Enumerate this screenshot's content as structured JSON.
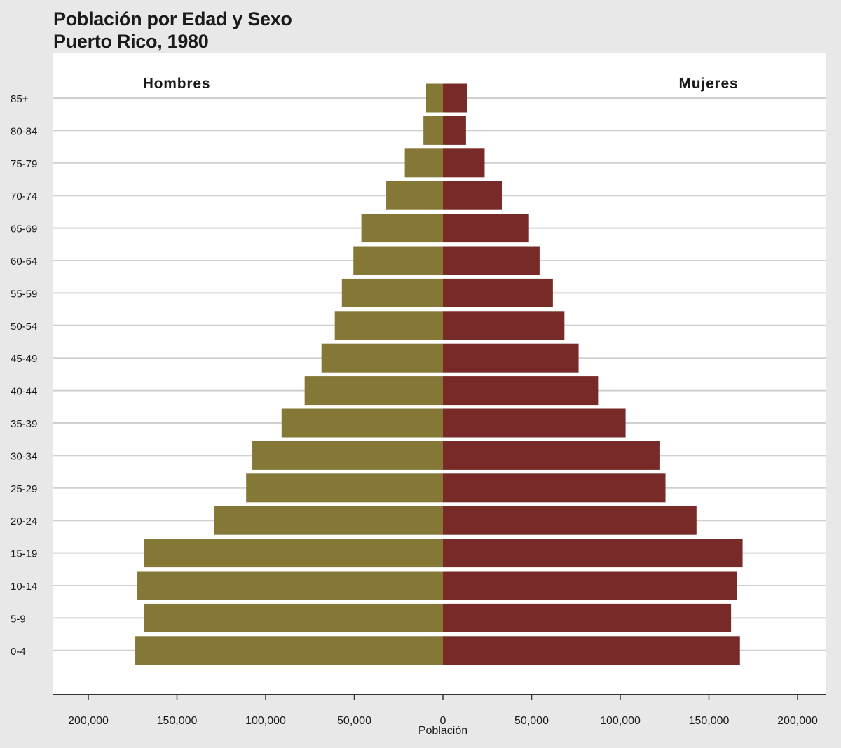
{
  "chart_data": {
    "type": "bar",
    "orientation": "horizontal",
    "layout": "population-pyramid",
    "title": "Población por Edad y Sexo",
    "subtitle": "Puerto Rico, 1980",
    "xlabel": "Población",
    "categories": [
      "85+",
      "80-84",
      "75-79",
      "70-74",
      "65-69",
      "60-64",
      "55-59",
      "50-54",
      "45-49",
      "40-44",
      "35-39",
      "30-34",
      "25-29",
      "20-24",
      "15-19",
      "10-14",
      "5-9",
      "0-4"
    ],
    "series": [
      {
        "name": "Hombres",
        "side": "left",
        "color": "#857736",
        "values": [
          9500,
          11000,
          21500,
          32000,
          46000,
          50500,
          57000,
          61000,
          68500,
          78000,
          91000,
          107500,
          111000,
          129000,
          168500,
          172500,
          168500,
          173500
        ]
      },
      {
        "name": "Mujeres",
        "side": "right",
        "color": "#772a27",
        "values": [
          13500,
          13000,
          23500,
          33500,
          48500,
          54500,
          62000,
          68500,
          76500,
          87500,
          103000,
          122500,
          125500,
          143000,
          169000,
          166000,
          162500,
          167500
        ]
      }
    ],
    "xticks": [
      "200,000",
      "150,000",
      "100,000",
      "50,000",
      "0",
      "50,000",
      "100,000",
      "150,000",
      "200,000"
    ],
    "xtick_values": [
      -200000,
      -150000,
      -100000,
      -50000,
      0,
      50000,
      100000,
      150000,
      200000
    ],
    "xlim": [
      -200000,
      200000
    ],
    "grid": "horizontal",
    "colors": {
      "background": "#e8e8e8",
      "plot_background": "#ffffff",
      "gridline": "#d0d0d0",
      "axis": "#333333",
      "text": "#1a1a1a"
    }
  }
}
